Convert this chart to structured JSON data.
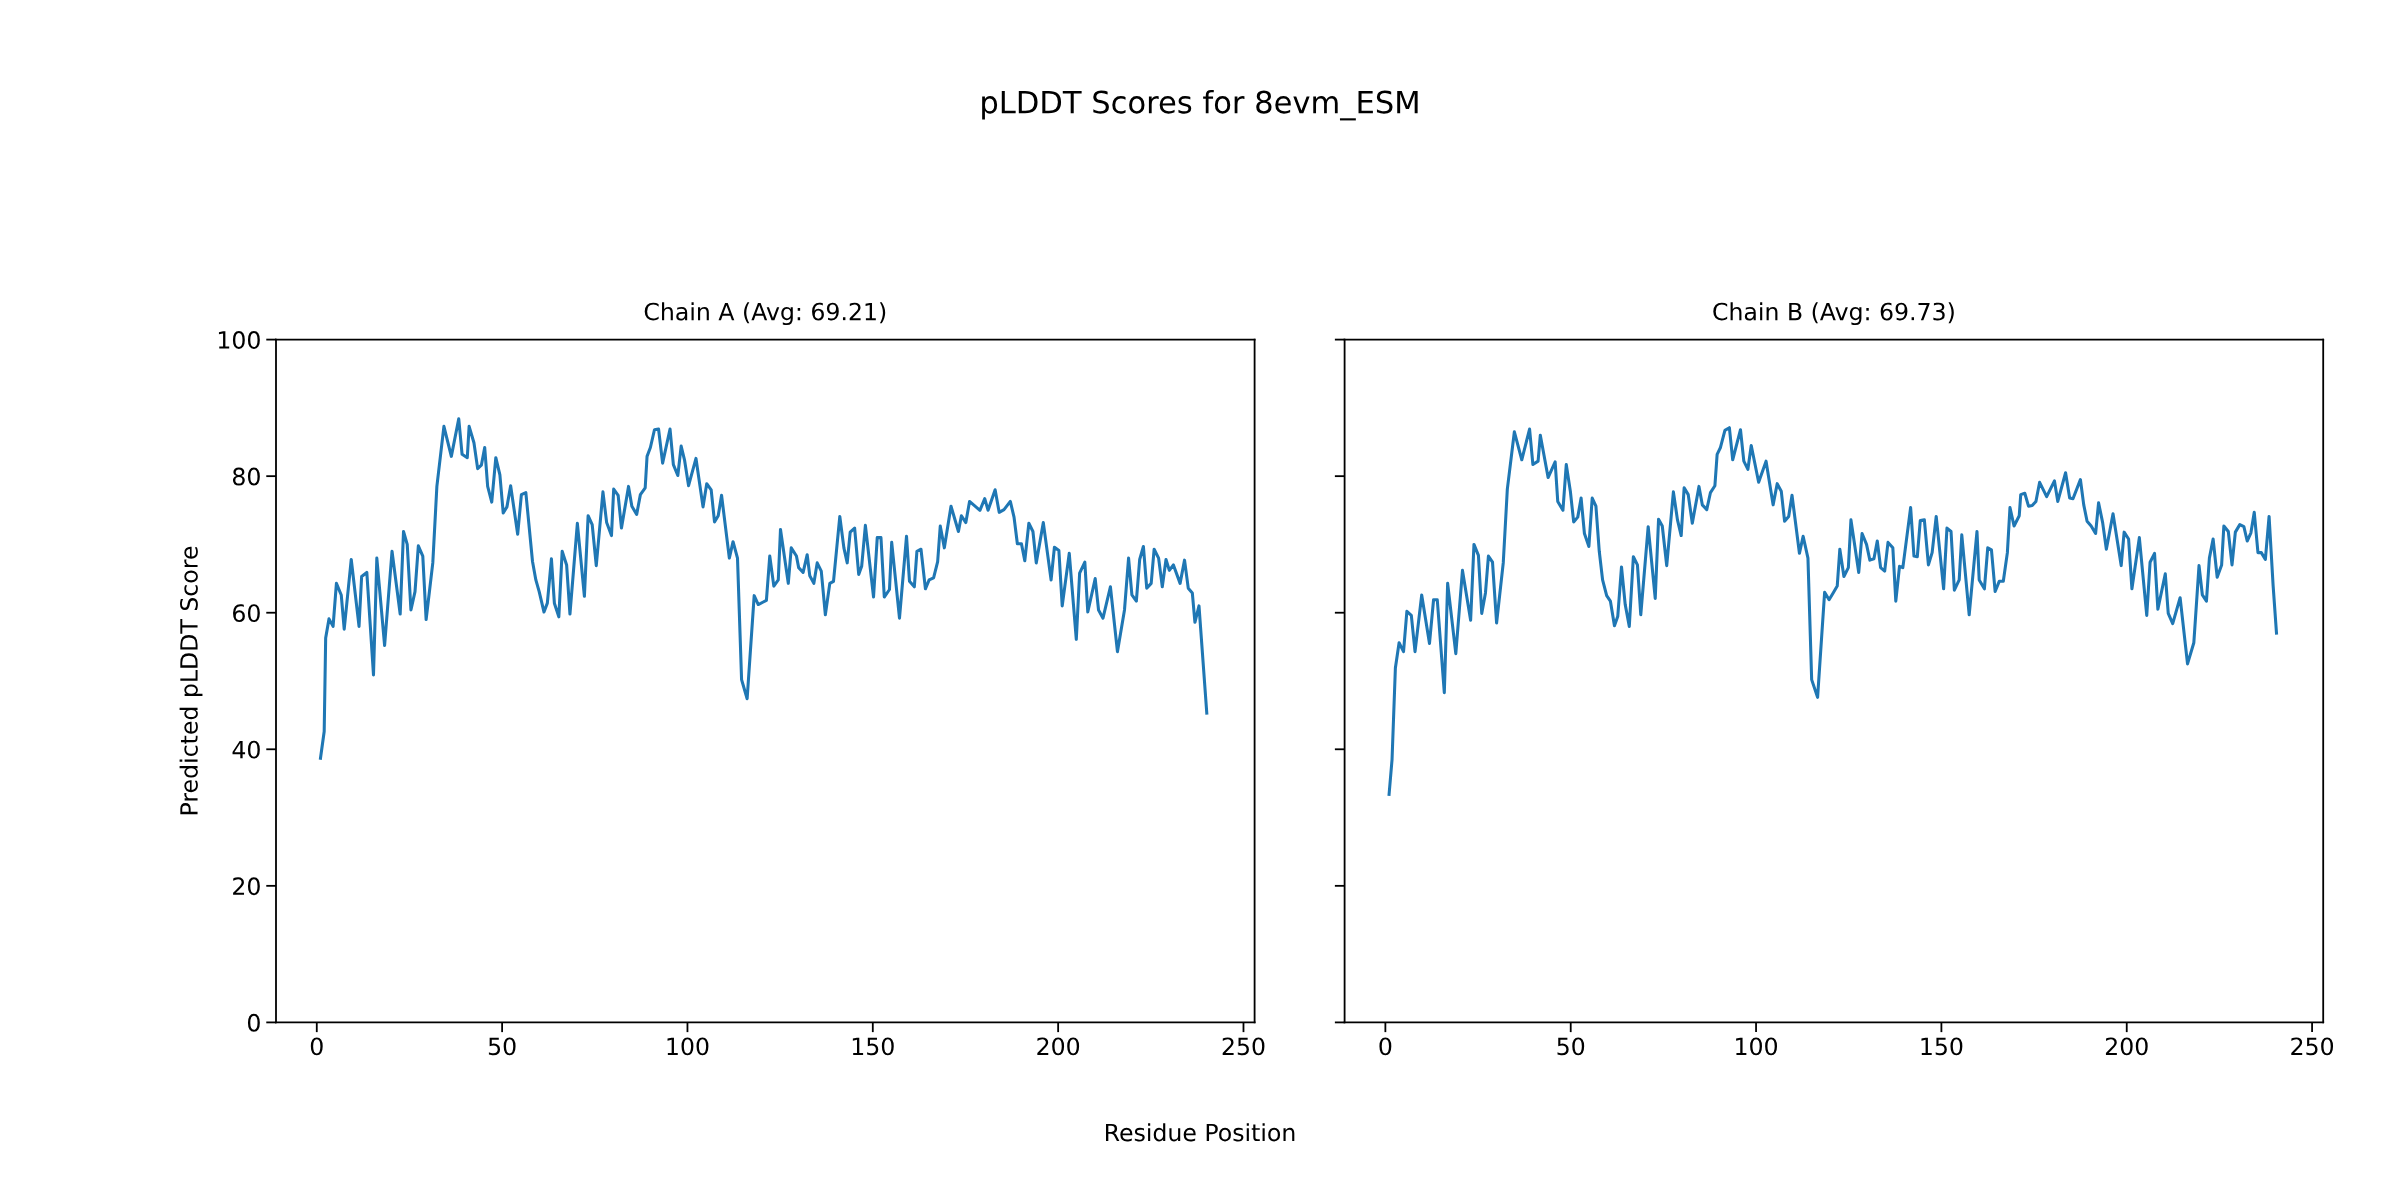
{
  "chart_data": [
    {
      "type": "line",
      "title": "pLDDT Scores for 8evm_ESM",
      "subtitle": "Chain A (Avg: 69.21)",
      "xlabel": "Residue Position",
      "ylabel": "Predicted pLDDT Score",
      "xlim": [
        -11,
        253
      ],
      "xticks": [
        0,
        50,
        100,
        150,
        200,
        250
      ],
      "ylim": [
        0,
        100
      ],
      "yticks": [
        0,
        20,
        40,
        60,
        80,
        100
      ],
      "line_style": "solid",
      "marker": "none",
      "series": [
        {
          "color": "#1f77b4",
          "x": [
            1,
            2,
            2.4,
            3.3,
            4.4,
            5.3,
            6.6,
            7.4,
            9.3,
            11.4,
            12.1,
            13.5,
            15.3,
            16.2,
            18.3,
            20.3,
            22.5,
            23.4,
            24.4,
            25.4,
            26.5,
            27.4,
            28.6,
            29.5,
            31.3,
            32.4,
            34.3,
            36.3,
            38.3,
            39.2,
            40.6,
            41.1,
            42.4,
            43.4,
            44.4,
            45.3,
            46.1,
            47.2,
            48.3,
            49.4,
            50.3,
            51.3,
            52.3,
            54.2,
            55.2,
            56.4,
            58.2,
            59.1,
            60.0,
            61.3,
            62.2,
            63.3,
            64.1,
            65.3,
            66.2,
            67.4,
            68.3,
            70.3,
            72.2,
            73.2,
            74.3,
            75.4,
            77.2,
            78.2,
            79.5,
            80.1,
            81.3,
            82.2,
            84.1,
            85.0,
            86.3,
            87.3,
            88.6,
            89.1,
            90.0,
            91.1,
            92.2,
            93.3,
            95.3,
            96.2,
            97.4,
            98.3,
            99.2,
            100.3,
            102.3,
            104.2,
            105.2,
            106.4,
            107.3,
            108.3,
            109.2,
            111.3,
            112.3,
            113.5,
            114.6,
            116.1,
            118.0,
            119.1,
            121.3,
            122.2,
            123.3,
            124.5,
            125.1,
            127.2,
            128.0,
            129.4,
            130.0,
            131.2,
            132.3,
            133.0,
            134.1,
            135.0,
            136.1,
            137.2,
            138.4,
            139.4,
            141.1,
            142.2,
            143.1,
            143.9,
            145.1,
            146.2,
            147.0,
            148.0,
            150.2,
            151.2,
            152.2,
            153.1,
            154.5,
            155.1,
            157.2,
            159.1,
            159.9,
            161.2,
            161.9,
            163.0,
            164.2,
            165.2,
            166.4,
            167.5,
            168.2,
            169.3,
            171.1,
            173.1,
            173.9,
            175.1,
            176.1,
            178.9,
            180.2,
            181.1,
            183.0,
            184.1,
            185.4,
            187.1,
            188.1,
            189.0,
            190.1,
            191.0,
            192.1,
            193.2,
            194.1,
            196.0,
            198.1,
            199.0,
            200.2,
            201.1,
            203.0,
            204.9,
            205.8,
            207.2,
            208.0,
            210.0,
            210.9,
            212.1,
            214.1,
            216.0,
            217.9,
            219.0,
            219.9,
            221.1,
            222.0,
            223.0,
            223.9,
            225.1,
            225.9,
            227.1,
            228.1,
            229.1,
            230.0,
            231.1,
            232.9,
            234.1,
            235.1,
            236.2,
            236.9,
            238.0,
            240.1
          ],
          "values": [
            38.7,
            42.6,
            56.3,
            59.1,
            58.0,
            64.3,
            62.6,
            57.6,
            67.8,
            58.0,
            65.3,
            65.9,
            50.9,
            68.0,
            55.2,
            69.0,
            59.8,
            71.9,
            70.0,
            60.4,
            63.1,
            69.8,
            68.3,
            59.0,
            67.3,
            78.5,
            87.3,
            82.9,
            88.4,
            83.2,
            82.7,
            87.3,
            84.9,
            81.1,
            81.6,
            84.2,
            78.5,
            76.2,
            82.7,
            80.2,
            74.6,
            75.5,
            78.6,
            71.5,
            77.3,
            77.6,
            67.5,
            64.8,
            63.1,
            60.1,
            61.4,
            67.9,
            61.4,
            59.4,
            69.0,
            67.0,
            59.8,
            73.1,
            62.4,
            74.2,
            72.9,
            66.9,
            77.7,
            73.2,
            71.3,
            78.1,
            77.2,
            72.4,
            78.5,
            75.6,
            74.4,
            77.3,
            78.3,
            82.9,
            84.2,
            86.8,
            86.9,
            81.9,
            86.9,
            81.7,
            80.1,
            84.4,
            82.4,
            78.6,
            82.6,
            75.5,
            78.9,
            78.0,
            73.3,
            74.2,
            77.2,
            68.0,
            70.4,
            68.0,
            50.2,
            47.4,
            62.5,
            61.2,
            61.8,
            68.3,
            63.9,
            64.8,
            72.2,
            64.3,
            69.5,
            68.3,
            66.6,
            65.9,
            68.5,
            65.4,
            64.3,
            67.3,
            66.1,
            59.7,
            64.3,
            64.6,
            74.1,
            69.5,
            67.3,
            71.8,
            72.4,
            65.6,
            66.8,
            72.8,
            62.3,
            71.0,
            71.0,
            62.3,
            63.4,
            70.3,
            59.2,
            71.2,
            64.6,
            63.8,
            69.0,
            69.3,
            63.5,
            64.8,
            65.1,
            67.5,
            72.7,
            69.5,
            75.6,
            71.9,
            74.2,
            73.2,
            76.3,
            75.0,
            76.7,
            75.0,
            78.0,
            74.7,
            75.1,
            76.3,
            74.0,
            70.1,
            70.1,
            67.6,
            73.1,
            71.9,
            67.3,
            73.2,
            64.8,
            69.6,
            69.1,
            61.0,
            68.7,
            56.1,
            65.8,
            67.4,
            60.1,
            65.0,
            60.4,
            59.2,
            63.8,
            54.3,
            60.4,
            68.0,
            62.6,
            61.7,
            67.8,
            69.7,
            63.6,
            64.3,
            69.3,
            68.0,
            63.8,
            67.8,
            66.2,
            67.0,
            64.3,
            67.7,
            63.6,
            62.9,
            58.6,
            61.0,
            45.3
          ]
        }
      ]
    },
    {
      "type": "line",
      "subtitle": "Chain B (Avg: 69.73)",
      "xlim": [
        -11,
        253
      ],
      "xticks": [
        0,
        50,
        100,
        150,
        200,
        250
      ],
      "ylim": [
        0,
        100
      ],
      "yticks": [
        0,
        20,
        40,
        60,
        80,
        100
      ],
      "tick_labels": "x",
      "line_style": "solid",
      "marker": "none",
      "series": [
        {
          "color": "#1f77b4",
          "x": [
            1,
            1.8,
            2.7,
            3.7,
            4.9,
            5.8,
            7.0,
            8.0,
            9.8,
            11.9,
            13.0,
            14.0,
            15.9,
            16.8,
            19.0,
            20.8,
            23.0,
            23.9,
            25.1,
            26.0,
            27.0,
            27.8,
            28.9,
            30.0,
            31.8,
            32.9,
            34.8,
            36.8,
            38.9,
            39.8,
            41.2,
            41.8,
            43.9,
            45.8,
            46.5,
            47.9,
            48.8,
            49.9,
            50.8,
            51.9,
            52.8,
            53.7,
            54.9,
            55.8,
            56.8,
            57.7,
            58.6,
            59.7,
            60.7,
            61.8,
            62.7,
            63.7,
            64.7,
            65.8,
            66.9,
            68.0,
            68.9,
            70.9,
            72.8,
            73.7,
            74.7,
            75.9,
            77.7,
            78.8,
            79.8,
            80.6,
            81.7,
            82.8,
            84.6,
            85.5,
            86.7,
            87.7,
            88.9,
            89.5,
            90.4,
            91.6,
            92.8,
            93.7,
            95.8,
            96.7,
            97.8,
            98.7,
            100.7,
            102.7,
            104.6,
            105.7,
            106.8,
            107.7,
            108.8,
            109.7,
            111.7,
            112.7,
            114.0,
            115.0,
            116.6,
            118.5,
            119.7,
            120.8,
            121.9,
            122.6,
            123.7,
            124.9,
            125.6,
            127.7,
            128.6,
            129.8,
            130.7,
            131.8,
            132.7,
            133.6,
            134.7,
            135.6,
            136.9,
            137.7,
            138.7,
            139.6,
            141.7,
            142.6,
            143.5,
            144.3,
            145.4,
            146.5,
            147.5,
            148.6,
            150.6,
            151.5,
            152.6,
            153.5,
            154.8,
            155.5,
            157.5,
            159.6,
            160.2,
            161.6,
            162.5,
            163.5,
            164.5,
            165.6,
            166.7,
            167.8,
            168.5,
            169.6,
            171.0,
            171.4,
            172.5,
            173.5,
            174.5,
            175.5,
            176.5,
            178.4,
            180.5,
            181.4,
            183.5,
            184.6,
            185.5,
            187.5,
            188.4,
            189.3,
            190.4,
            191.6,
            192.4,
            193.5,
            194.5,
            196.3,
            198.5,
            199.3,
            200.5,
            201.4,
            203.4,
            205.4,
            206.3,
            207.5,
            208.4,
            210.4,
            211.2,
            212.4,
            214.4,
            216.4,
            218.1,
            219.5,
            220.4,
            221.5,
            222.3,
            223.3,
            224.4,
            225.6,
            226.2,
            227.4,
            228.4,
            229.3,
            230.5,
            231.6,
            232.5,
            233.5,
            234.4,
            235.4,
            236.3,
            237.4,
            238.4,
            239.5,
            240.4
          ],
          "values": [
            33.4,
            38.5,
            51.9,
            55.6,
            54.3,
            60.2,
            59.6,
            54.3,
            62.6,
            55.5,
            61.9,
            61.9,
            48.3,
            64.3,
            54.0,
            66.2,
            58.9,
            70.0,
            68.4,
            59.9,
            62.9,
            68.3,
            67.4,
            58.5,
            67.3,
            78.1,
            86.5,
            82.4,
            86.9,
            81.7,
            82.2,
            86.0,
            79.8,
            82.1,
            76.3,
            75.0,
            81.7,
            77.8,
            73.3,
            74.0,
            76.8,
            71.6,
            69.7,
            76.8,
            75.6,
            69.0,
            64.8,
            62.5,
            61.7,
            58.1,
            59.5,
            66.7,
            61.2,
            58.0,
            68.2,
            67.0,
            59.7,
            72.6,
            62.1,
            73.7,
            72.7,
            66.9,
            77.7,
            73.6,
            71.3,
            78.3,
            77.3,
            73.1,
            78.5,
            75.8,
            75.1,
            77.6,
            78.6,
            83.2,
            84.2,
            86.7,
            87.1,
            82.4,
            86.8,
            82.2,
            81.0,
            84.5,
            79.1,
            82.2,
            75.8,
            78.9,
            77.8,
            73.4,
            74.1,
            77.2,
            68.7,
            71.2,
            68.0,
            50.2,
            47.6,
            63.0,
            61.9,
            62.9,
            63.9,
            69.3,
            65.3,
            66.6,
            73.6,
            65.9,
            71.6,
            70.0,
            67.7,
            67.9,
            70.5,
            66.6,
            66.1,
            70.3,
            69.5,
            61.7,
            66.8,
            66.6,
            75.4,
            68.3,
            68.2,
            73.5,
            73.6,
            67.0,
            68.8,
            74.1,
            63.5,
            72.4,
            71.9,
            63.3,
            64.8,
            71.4,
            59.7,
            71.9,
            64.8,
            63.5,
            69.5,
            69.2,
            63.1,
            64.6,
            64.6,
            68.8,
            75.4,
            72.7,
            74.2,
            77.3,
            77.5,
            75.6,
            75.7,
            76.3,
            79.1,
            77.0,
            79.3,
            76.3,
            80.5,
            76.8,
            76.7,
            79.5,
            75.8,
            73.4,
            72.7,
            71.6,
            76.1,
            73.2,
            69.3,
            74.5,
            66.9,
            71.8,
            70.8,
            63.5,
            71.0,
            59.6,
            67.4,
            68.7,
            60.5,
            65.7,
            59.9,
            58.4,
            62.2,
            52.5,
            55.6,
            66.9,
            62.6,
            61.7,
            68.0,
            70.8,
            65.2,
            67.0,
            72.7,
            71.9,
            67.0,
            71.8,
            72.9,
            72.6,
            70.5,
            71.7,
            74.7,
            68.8,
            68.8,
            67.8,
            74.1,
            63.9,
            57.0
          ]
        }
      ]
    }
  ]
}
